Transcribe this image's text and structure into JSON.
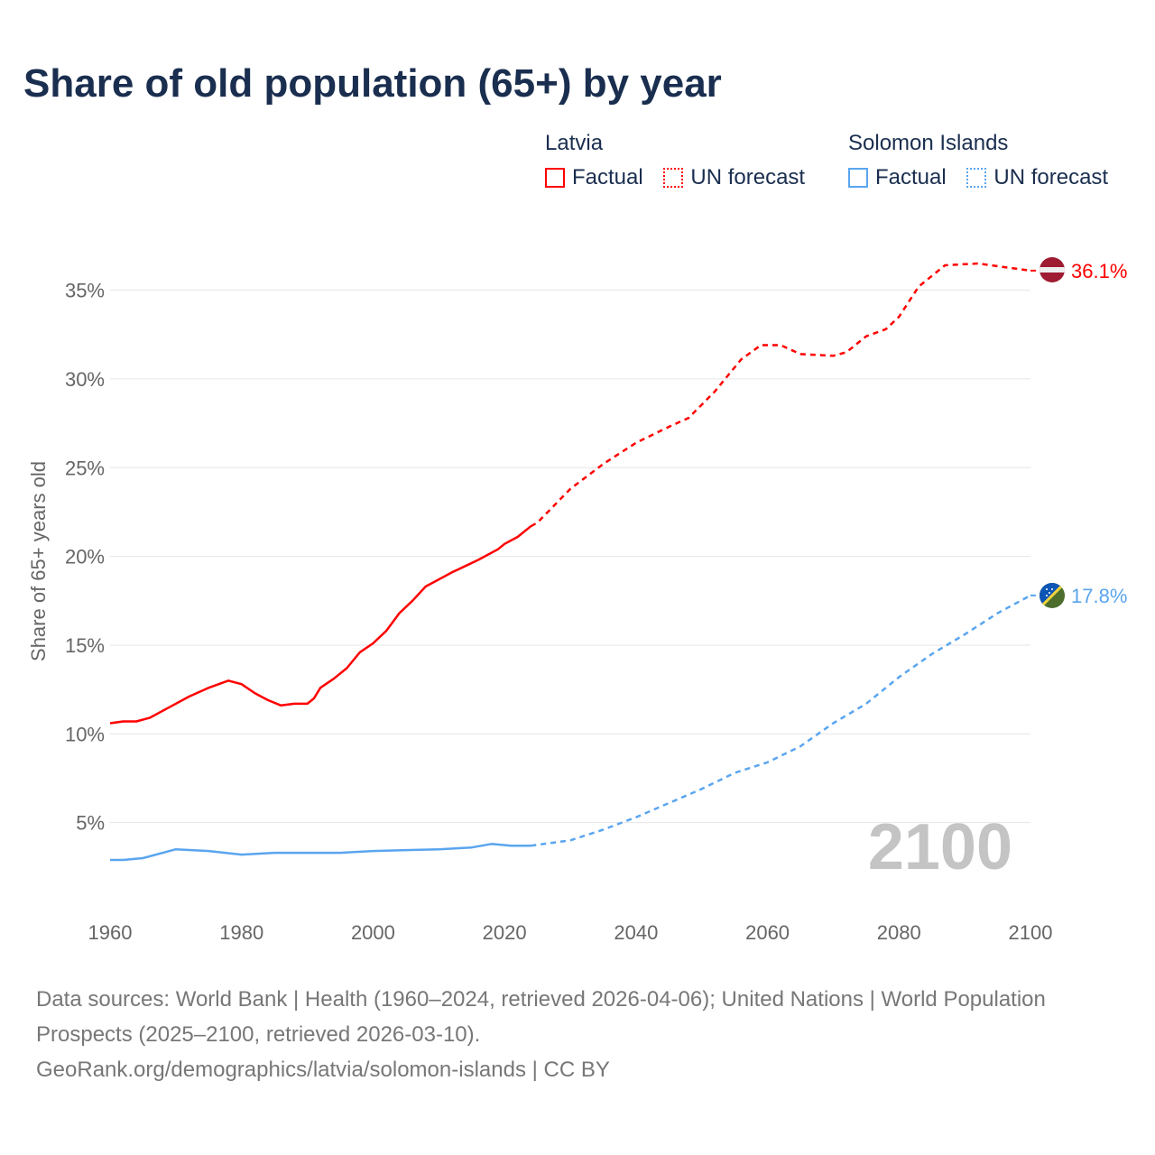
{
  "title": "Share of old population (65+) by year",
  "legend": {
    "groups": [
      {
        "name": "Latvia",
        "factual": "Factual",
        "forecast": "UN forecast",
        "color": "#ff0000"
      },
      {
        "name": "Solomon Islands",
        "factual": "Factual",
        "forecast": "UN forecast",
        "color": "#5aa5ef"
      }
    ]
  },
  "year_watermark": "2100",
  "footer": {
    "line1": "Data sources: World Bank | Health (1960–2024, retrieved 2026-04-06); United Nations | World Population Prospects (2025–2100, retrieved 2026-03-10).",
    "line2": "GeoRank.org/demographics/latvia/solomon-islands | CC BY"
  },
  "chart_data": {
    "type": "line",
    "title": "Share of old population (65+) by year",
    "xlabel": "",
    "ylabel": "Share of 65+ years old",
    "xlim": [
      1960,
      2100
    ],
    "ylim": [
      0,
      37
    ],
    "xticks": [
      "1960",
      "1980",
      "2000",
      "2020",
      "2040",
      "2060",
      "2080",
      "2100"
    ],
    "yticks": [
      "5%",
      "10%",
      "15%",
      "20%",
      "25%",
      "30%",
      "35%"
    ],
    "ytick_values": [
      5,
      10,
      15,
      20,
      25,
      30,
      35
    ],
    "grid": true,
    "series": [
      {
        "name": "Latvia – Factual",
        "color": "#ff0000",
        "dash": false,
        "x": [
          1960,
          1962,
          1964,
          1966,
          1969,
          1972,
          1975,
          1978,
          1980,
          1982,
          1984,
          1986,
          1988,
          1990,
          1991,
          1992,
          1994,
          1996,
          1998,
          2000,
          2002,
          2004,
          2006,
          2008,
          2012,
          2016,
          2019,
          2020,
          2022,
          2024
        ],
        "y": [
          10.6,
          10.7,
          10.7,
          10.9,
          11.5,
          12.1,
          12.6,
          13.0,
          12.8,
          12.3,
          11.9,
          11.6,
          11.7,
          11.7,
          12.0,
          12.6,
          13.1,
          13.7,
          14.6,
          15.1,
          15.8,
          16.8,
          17.5,
          18.3,
          19.1,
          19.8,
          20.4,
          20.7,
          21.1,
          21.7
        ]
      },
      {
        "name": "Latvia – UN forecast",
        "color": "#ff0000",
        "dash": true,
        "x": [
          2024,
          2025,
          2030,
          2035,
          2040,
          2045,
          2048,
          2052,
          2056,
          2059,
          2062,
          2065,
          2070,
          2072,
          2075,
          2078,
          2080,
          2083,
          2087,
          2092,
          2096,
          2100
        ],
        "y": [
          21.7,
          21.9,
          23.8,
          25.2,
          26.4,
          27.3,
          27.8,
          29.3,
          31.1,
          31.9,
          31.9,
          31.4,
          31.3,
          31.5,
          32.4,
          32.8,
          33.5,
          35.2,
          36.4,
          36.5,
          36.3,
          36.1
        ]
      },
      {
        "name": "Solomon Islands – Factual",
        "color": "#5aa5ef",
        "dash": false,
        "x": [
          1960,
          1962,
          1965,
          1970,
          1975,
          1980,
          1985,
          1990,
          1995,
          2000,
          2005,
          2010,
          2015,
          2018,
          2021,
          2024
        ],
        "y": [
          2.9,
          2.9,
          3.0,
          3.5,
          3.4,
          3.2,
          3.3,
          3.3,
          3.3,
          3.4,
          3.45,
          3.5,
          3.6,
          3.8,
          3.7,
          3.7
        ]
      },
      {
        "name": "Solomon Islands – UN forecast",
        "color": "#5aa5ef",
        "dash": true,
        "x": [
          2024,
          2030,
          2035,
          2040,
          2045,
          2050,
          2055,
          2060,
          2065,
          2070,
          2075,
          2080,
          2085,
          2090,
          2095,
          2100
        ],
        "y": [
          3.7,
          4.0,
          4.6,
          5.3,
          6.1,
          6.9,
          7.8,
          8.4,
          9.3,
          10.6,
          11.7,
          13.2,
          14.5,
          15.6,
          16.8,
          17.8
        ]
      }
    ],
    "end_labels": [
      {
        "country": "Latvia",
        "value": 36.1,
        "label": "36.1%",
        "color": "#ff0000"
      },
      {
        "country": "Solomon Islands",
        "value": 17.8,
        "label": "17.8%",
        "color": "#5aa5ef"
      }
    ]
  }
}
